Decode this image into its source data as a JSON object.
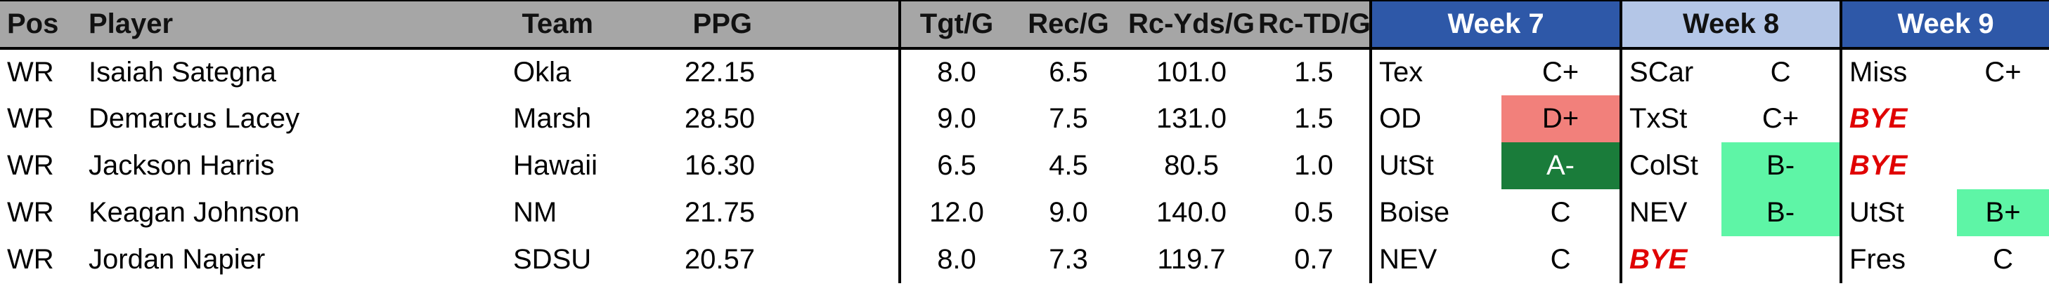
{
  "headers": {
    "pos": "Pos",
    "player": "Player",
    "team": "Team",
    "ppg": "PPG",
    "tgt": "Tgt/G",
    "rec": "Rec/G",
    "rcyds": "Rc-Yds/G",
    "rctd": "Rc-TD/G",
    "week7": "Week 7",
    "week8": "Week 8",
    "week9": "Week 9"
  },
  "colors": {
    "header_gray": "#a6a6a6",
    "week_dark_blue": "#2e58a8",
    "week_light_blue": "#b4c6e7",
    "bye_red": "#e00000",
    "grade_red": "#f2807b",
    "grade_dark_green": "#1a7c3a",
    "grade_mint": "#5ef5a6"
  },
  "rows": [
    {
      "pos": "WR",
      "player": "Isaiah Sategna",
      "team": "Okla",
      "ppg": "22.15",
      "tgt": "8.0",
      "rec": "6.5",
      "rcyds": "101.0",
      "rctd": "1.5",
      "w7_opp": "Tex",
      "w7_grade": "C+",
      "w8_opp": "SCar",
      "w8_grade": "C",
      "w9_opp": "Miss",
      "w9_grade": "C+"
    },
    {
      "pos": "WR",
      "player": "Demarcus Lacey",
      "team": "Marsh",
      "ppg": "28.50",
      "tgt": "9.0",
      "rec": "7.5",
      "rcyds": "131.0",
      "rctd": "1.5",
      "w7_opp": "OD",
      "w7_grade": "D+",
      "w8_opp": "TxSt",
      "w8_grade": "C+",
      "w9_opp": "BYE",
      "w9_grade": ""
    },
    {
      "pos": "WR",
      "player": "Jackson Harris",
      "team": "Hawaii",
      "ppg": "16.30",
      "tgt": "6.5",
      "rec": "4.5",
      "rcyds": "80.5",
      "rctd": "1.0",
      "w7_opp": "UtSt",
      "w7_grade": "A-",
      "w8_opp": "ColSt",
      "w8_grade": "B-",
      "w9_opp": "BYE",
      "w9_grade": ""
    },
    {
      "pos": "WR",
      "player": "Keagan Johnson",
      "team": "NM",
      "ppg": "21.75",
      "tgt": "12.0",
      "rec": "9.0",
      "rcyds": "140.0",
      "rctd": "0.5",
      "w7_opp": "Boise",
      "w7_grade": "C",
      "w8_opp": "NEV",
      "w8_grade": "B-",
      "w9_opp": "UtSt",
      "w9_grade": "B+"
    },
    {
      "pos": "WR",
      "player": "Jordan Napier",
      "team": "SDSU",
      "ppg": "20.57",
      "tgt": "8.0",
      "rec": "7.3",
      "rcyds": "119.7",
      "rctd": "0.7",
      "w7_opp": "NEV",
      "w7_grade": "C",
      "w8_opp": "BYE",
      "w8_grade": "",
      "w9_opp": "Fres",
      "w9_grade": "C"
    }
  ]
}
